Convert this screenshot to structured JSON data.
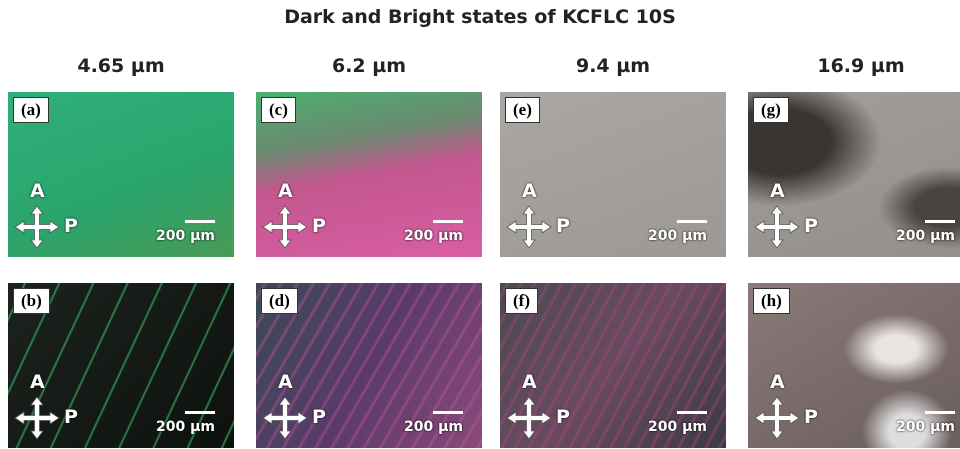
{
  "title": "Dark and Bright states of KCFLC 10S",
  "columns": [
    {
      "thickness": "4.65 µm",
      "panels": [
        {
          "label": "(a)",
          "analyzer": "A",
          "polarizer": "P",
          "scale_bar": "200 µm"
        },
        {
          "label": "(b)",
          "analyzer": "A",
          "polarizer": "P",
          "scale_bar": "200 µm"
        }
      ]
    },
    {
      "thickness": "6.2 µm",
      "panels": [
        {
          "label": "(c)",
          "analyzer": "A",
          "polarizer": "P",
          "scale_bar": "200 µm"
        },
        {
          "label": "(d)",
          "analyzer": "A",
          "polarizer": "P",
          "scale_bar": "200 µm"
        }
      ]
    },
    {
      "thickness": "9.4 µm",
      "panels": [
        {
          "label": "(e)",
          "analyzer": "A",
          "polarizer": "P",
          "scale_bar": "200 µm"
        },
        {
          "label": "(f)",
          "analyzer": "A",
          "polarizer": "P",
          "scale_bar": "200 µm"
        }
      ]
    },
    {
      "thickness": "16.9 µm",
      "panels": [
        {
          "label": "(g)",
          "analyzer": "A",
          "polarizer": "P",
          "scale_bar": "200 µm"
        },
        {
          "label": "(h)",
          "analyzer": "A",
          "polarizer": "P",
          "scale_bar": "200 µm"
        }
      ]
    }
  ]
}
